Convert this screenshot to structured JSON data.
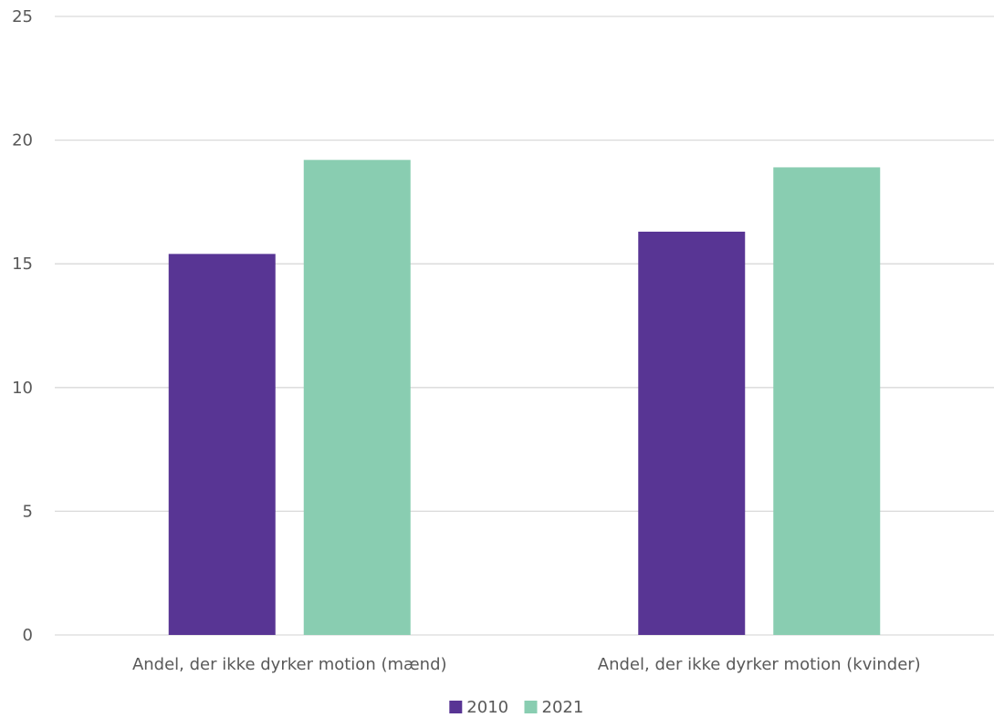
{
  "chart_data": {
    "type": "bar",
    "title": "",
    "xlabel": "",
    "ylabel": "",
    "categories": [
      "Andel, der ikke dyrker motion (mænd)",
      "Andel, der ikke dyrker motion (kvinder)"
    ],
    "series": [
      {
        "name": "2010",
        "values": [
          15.4,
          16.3
        ],
        "color": "#583594"
      },
      {
        "name": "2021",
        "values": [
          19.2,
          18.9
        ],
        "color": "#89cdb1"
      }
    ],
    "ylim": [
      0,
      25
    ],
    "yticks": [
      0,
      5,
      10,
      15,
      20,
      25
    ],
    "grid": true,
    "legend_position": "bottom"
  }
}
